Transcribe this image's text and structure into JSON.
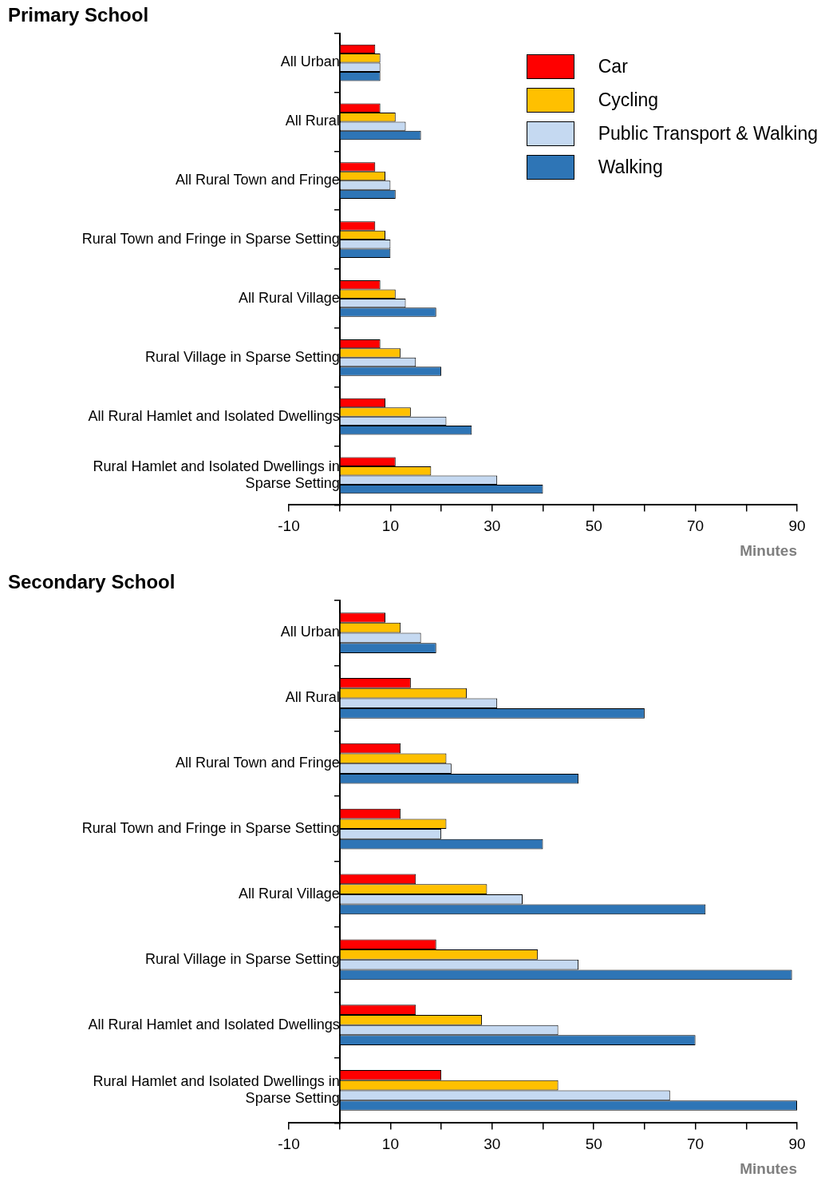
{
  "chart_data": [
    {
      "type": "bar",
      "orientation": "horizontal",
      "title": "Primary School",
      "xlabel": "Minutes",
      "categories": [
        "All Urban",
        "All Rural",
        "All Rural Town and Fringe",
        "Rural Town and Fringe in Sparse Setting",
        "All Rural Village",
        "Rural Village in Sparse Setting",
        "All Rural Hamlet and Isolated Dwellings",
        "Rural Hamlet and Isolated Dwellings in Sparse Setting"
      ],
      "series": [
        {
          "name": "Car",
          "color": "#ff0000",
          "values": [
            7,
            8,
            7,
            7,
            8,
            8,
            9,
            11
          ]
        },
        {
          "name": "Cycling",
          "color": "#ffc000",
          "values": [
            8,
            11,
            9,
            9,
            11,
            12,
            14,
            18
          ]
        },
        {
          "name": "Public Transport & Walking",
          "color": "#c5d9f1",
          "values": [
            8,
            13,
            10,
            10,
            13,
            15,
            21,
            31
          ]
        },
        {
          "name": "Walking",
          "color": "#2e75b6",
          "values": [
            8,
            16,
            11,
            10,
            19,
            20,
            26,
            40
          ]
        }
      ],
      "xlim": [
        -10,
        90
      ],
      "xticks": [
        -10,
        {
          "value": 0,
          "label": null
        },
        10,
        {
          "value": 20,
          "label": null
        },
        30,
        {
          "value": 40,
          "label": null
        },
        50,
        {
          "value": 60,
          "label": null
        },
        70,
        {
          "value": 80,
          "label": null
        },
        90
      ],
      "legend": "top right",
      "grid": false
    },
    {
      "type": "bar",
      "orientation": "horizontal",
      "title": "Secondary School",
      "xlabel": "Minutes",
      "categories": [
        "All Urban",
        "All Rural",
        "All Rural Town and Fringe",
        "Rural Town and Fringe in Sparse Setting",
        "All Rural Village",
        "Rural Village in Sparse Setting",
        "All Rural Hamlet and Isolated Dwellings",
        "Rural Hamlet and Isolated Dwellings in Sparse Setting"
      ],
      "series": [
        {
          "color": "#ff0000",
          "values": [
            9,
            14,
            12,
            12,
            15,
            19,
            15,
            20
          ]
        },
        {
          "color": "#ffc000",
          "values": [
            12,
            25,
            21,
            21,
            29,
            39,
            28,
            43
          ]
        },
        {
          "color": "#c5d9f1",
          "values": [
            16,
            31,
            22,
            20,
            36,
            47,
            43,
            65
          ]
        },
        {
          "color": "#2e75b6",
          "values": [
            19,
            60,
            47,
            40,
            72,
            89,
            70,
            90
          ]
        }
      ],
      "xlim": [
        -10,
        90
      ],
      "xticks": [
        -10,
        {
          "value": 0,
          "label": null
        },
        10,
        {
          "value": 20,
          "label": null
        },
        30,
        {
          "value": 40,
          "label": null
        },
        50,
        {
          "value": 60,
          "label": null
        },
        70,
        {
          "value": 80,
          "label": null
        },
        90
      ],
      "legend": false,
      "grid": false
    }
  ]
}
